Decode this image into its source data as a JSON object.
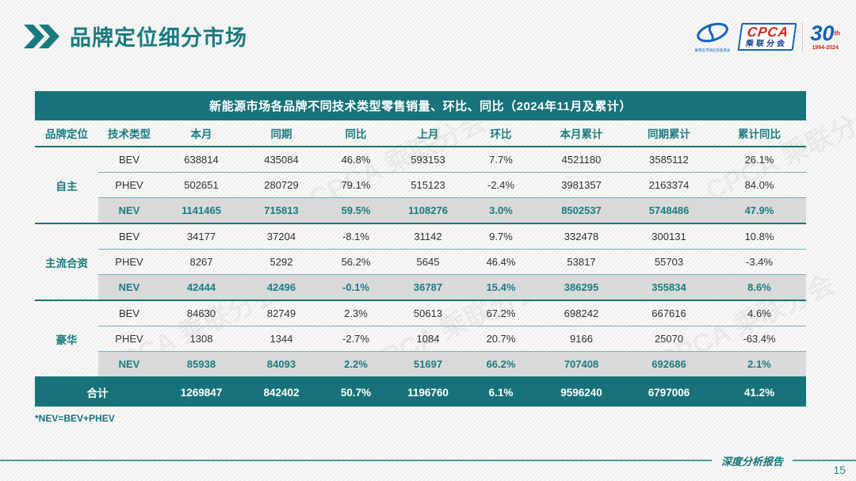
{
  "slide": {
    "title": "品牌定位细分市场",
    "footnote": "*NEV=BEV+PHEV",
    "footer_label": "深度分析报告",
    "page_number": "15",
    "watermark": "CPCA 乘联分会"
  },
  "logo": {
    "org_small": "乘用车市场信息联席会",
    "cpca_main": "CPCA",
    "cpca_sub": "乘联分会",
    "anniversary_number": "30",
    "anniversary_th": "th",
    "anniversary_years": "1994-2024"
  },
  "colors": {
    "teal_dark": "#177379",
    "teal_text": "#1b7b81",
    "row_line": "#6db3b9",
    "nev_band": "#d9d9d9",
    "logo_blue": "#1565c0",
    "logo_red": "#d0281e"
  },
  "table": {
    "title": "新能源市场各品牌不同技术类型零售销量、环比、同比（2024年11月及累计）",
    "columns": [
      "品牌定位",
      "技术类型",
      "本月",
      "同期",
      "同比",
      "上月",
      "环比",
      "本月累计",
      "同期累计",
      "累计同比"
    ],
    "groups": [
      {
        "label": "自主",
        "rows": [
          {
            "tech": "BEV",
            "highlight": false,
            "values": [
              "638814",
              "435084",
              "46.8%",
              "593153",
              "7.7%",
              "4521180",
              "3585112",
              "26.1%"
            ]
          },
          {
            "tech": "PHEV",
            "highlight": false,
            "values": [
              "502651",
              "280729",
              "79.1%",
              "515123",
              "-2.4%",
              "3981357",
              "2163374",
              "84.0%"
            ]
          },
          {
            "tech": "NEV",
            "highlight": true,
            "values": [
              "1141465",
              "715813",
              "59.5%",
              "1108276",
              "3.0%",
              "8502537",
              "5748486",
              "47.9%"
            ]
          }
        ]
      },
      {
        "label": "主流合资",
        "rows": [
          {
            "tech": "BEV",
            "highlight": false,
            "values": [
              "34177",
              "37204",
              "-8.1%",
              "31142",
              "9.7%",
              "332478",
              "300131",
              "10.8%"
            ]
          },
          {
            "tech": "PHEV",
            "highlight": false,
            "values": [
              "8267",
              "5292",
              "56.2%",
              "5645",
              "46.4%",
              "53817",
              "55703",
              "-3.4%"
            ]
          },
          {
            "tech": "NEV",
            "highlight": true,
            "values": [
              "42444",
              "42496",
              "-0.1%",
              "36787",
              "15.4%",
              "386295",
              "355834",
              "8.6%"
            ]
          }
        ]
      },
      {
        "label": "豪华",
        "rows": [
          {
            "tech": "BEV",
            "highlight": false,
            "values": [
              "84630",
              "82749",
              "2.3%",
              "50613",
              "67.2%",
              "698242",
              "667616",
              "4.6%"
            ]
          },
          {
            "tech": "PHEV",
            "highlight": false,
            "values": [
              "1308",
              "1344",
              "-2.7%",
              "1084",
              "20.7%",
              "9166",
              "25070",
              "-63.4%"
            ]
          },
          {
            "tech": "NEV",
            "highlight": true,
            "values": [
              "85938",
              "84093",
              "2.2%",
              "51697",
              "66.2%",
              "707408",
              "692686",
              "2.1%"
            ]
          }
        ]
      }
    ],
    "total": {
      "label": "合计",
      "values": [
        "1269847",
        "842402",
        "50.7%",
        "1196760",
        "6.1%",
        "9596240",
        "6797006",
        "41.2%"
      ]
    }
  }
}
